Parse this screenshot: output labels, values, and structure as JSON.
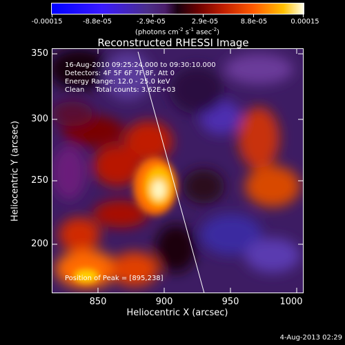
{
  "colorbar": {
    "tick_labels": [
      "-0.00015",
      "-8.8e-05",
      "-2.9e-05",
      "2.9e-05",
      "8.8e-05",
      "0.00015"
    ],
    "units": {
      "main": "(photons cm",
      "e1": "-2",
      "mid": " s",
      "e2": "-1",
      "mid2": " asec",
      "e3": "-2",
      "end": ")"
    }
  },
  "chart_data": {
    "type": "heatmap",
    "title": "Reconstructed RHESSI Image",
    "xlabel": "Heliocentric X (arcsec)",
    "ylabel": "Heliocentric Y (arcsec)",
    "xlim": [
      813,
      1003
    ],
    "ylim": [
      155,
      355
    ],
    "x_ticks": [
      "850",
      "900",
      "950",
      "1000"
    ],
    "y_ticks": [
      "350",
      "300",
      "250",
      "200"
    ],
    "color_range": [
      -0.00015,
      0.00015
    ],
    "peak": {
      "x": 895,
      "y": 238
    },
    "limb_line": [
      [
        880,
        355
      ],
      [
        932,
        158
      ]
    ],
    "annotations": {
      "time_range": "16-Aug-2010 09:25:24.000 to 09:30:10.000",
      "detectors": "Detectors: 4F 5F 6F 7F 8F, Att 0",
      "energy": "Energy Range: 12.0 - 25.0 keV",
      "method": "Clean     Total counts: 3.62E+03",
      "peak_text": "Position of Peak = [895,238]"
    }
  },
  "footer": {
    "date": "4-Aug-2013 02:29"
  }
}
